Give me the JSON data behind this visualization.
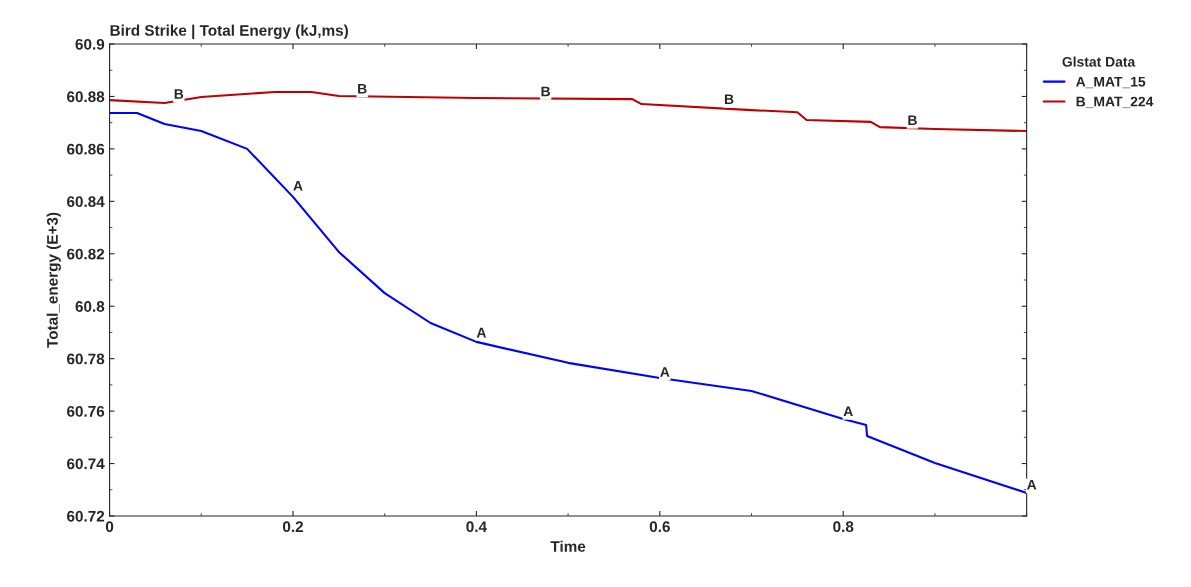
{
  "chart_data": {
    "type": "line",
    "title": "Bird Strike | Total Energy (kJ,ms)",
    "xlabel": "Time",
    "ylabel": "Total_energy (E+3)",
    "legend_title": "Glstat Data",
    "legend": "right",
    "grid": false,
    "marker": "none",
    "line_style": "solid",
    "xlim": [
      0,
      1
    ],
    "xticks": [
      0,
      0.2,
      0.4,
      0.6,
      0.8
    ],
    "ylim": [
      60.72,
      60.9
    ],
    "yticks": [
      60.72,
      60.74,
      60.76,
      60.78,
      60.8,
      60.82,
      60.84,
      60.86,
      60.88,
      60.9
    ],
    "series": [
      {
        "name": "A_MAT_15",
        "color": "#0000ff",
        "x": [
          0,
          0.03,
          0.06,
          0.1,
          0.15,
          0.2,
          0.25,
          0.3,
          0.35,
          0.4,
          0.5,
          0.6,
          0.7,
          0.8,
          0.825,
          0.826,
          0.9,
          1.0
        ],
        "values": [
          60.8737,
          60.8737,
          60.8695,
          60.8668,
          60.86,
          60.8417,
          60.8207,
          60.805,
          60.7936,
          60.7864,
          60.7784,
          60.7726,
          60.7677,
          60.757,
          60.7547,
          60.7505,
          60.7402,
          60.7288
        ]
      },
      {
        "name": "B_MAT_224",
        "color": "#c00000",
        "x": [
          0,
          0.06,
          0.1,
          0.18,
          0.22,
          0.25,
          0.4,
          0.57,
          0.58,
          0.7,
          0.75,
          0.76,
          0.83,
          0.84,
          0.9,
          1.0
        ],
        "values": [
          60.8786,
          60.8775,
          60.8798,
          60.8817,
          60.8817,
          60.8802,
          60.8794,
          60.879,
          60.8771,
          60.8748,
          60.874,
          60.871,
          60.8703,
          60.8683,
          60.8676,
          60.8668
        ]
      }
    ],
    "annotations": [
      {
        "text": "A",
        "x": 0.2,
        "y": 60.843
      },
      {
        "text": "A",
        "x": 0.4,
        "y": 60.787
      },
      {
        "text": "A",
        "x": 0.6,
        "y": 60.772
      },
      {
        "text": "A",
        "x": 0.8,
        "y": 60.757
      },
      {
        "text": "A",
        "x": 1.0,
        "y": 60.729
      },
      {
        "text": "B",
        "x": 0.07,
        "y": 60.878
      },
      {
        "text": "B",
        "x": 0.27,
        "y": 60.88
      },
      {
        "text": "B",
        "x": 0.47,
        "y": 60.879
      },
      {
        "text": "B",
        "x": 0.67,
        "y": 60.876
      },
      {
        "text": "B",
        "x": 0.87,
        "y": 60.868
      }
    ]
  }
}
